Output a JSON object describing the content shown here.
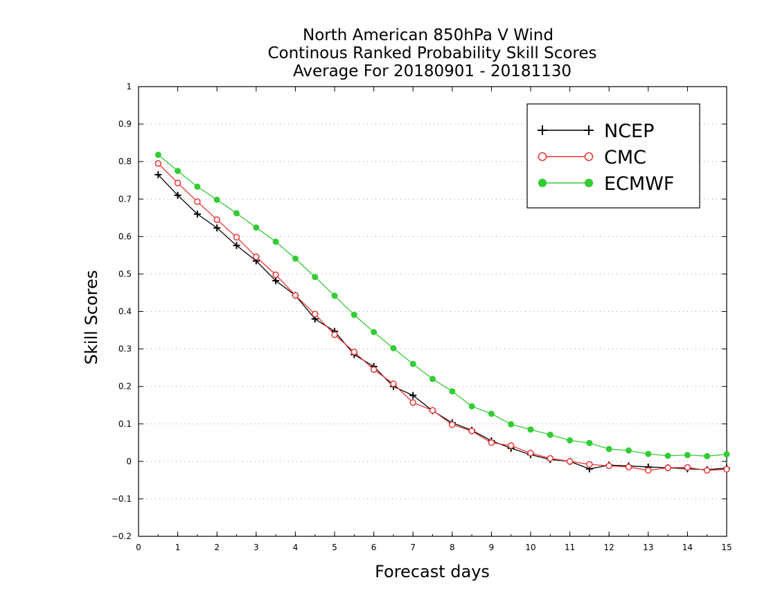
{
  "chart_data": {
    "type": "line",
    "title": [
      "North American 850hPa V Wind",
      "Continous Ranked Probability Skill Scores",
      "Average For 20180901 - 20181130"
    ],
    "xlabel": "Forecast days",
    "ylabel": "Skill Scores",
    "xlim": [
      0,
      15
    ],
    "ylim": [
      -0.2,
      1
    ],
    "xticks": [
      "0",
      "1",
      "2",
      "3",
      "4",
      "5",
      "6",
      "7",
      "8",
      "9",
      "10",
      "11",
      "12",
      "13",
      "14",
      "15"
    ],
    "yticks": [
      "−0.2",
      "−0.1",
      "0",
      "0.1",
      "0.2",
      "0.3",
      "0.4",
      "0.5",
      "0.6",
      "0.7",
      "0.8",
      "0.9",
      "1"
    ],
    "grid": "horizontal-dotted",
    "legend_position": "top-right",
    "x": [
      0.5,
      1,
      1.5,
      2,
      2.5,
      3,
      3.5,
      4,
      4.5,
      5,
      5.5,
      6,
      6.5,
      7,
      7.5,
      8,
      8.5,
      9,
      9.5,
      10,
      10.5,
      11,
      11.5,
      12,
      12.5,
      13,
      13.5,
      14,
      14.5,
      15
    ],
    "series": [
      {
        "name": "NCEP",
        "color": "#000000",
        "marker": "plus",
        "values": [
          0.765,
          0.71,
          0.66,
          0.623,
          0.576,
          0.535,
          0.482,
          0.443,
          0.38,
          0.347,
          0.285,
          0.253,
          0.2,
          0.176,
          0.135,
          0.103,
          0.083,
          0.055,
          0.035,
          0.018,
          0.005,
          0.0,
          -0.02,
          -0.01,
          -0.012,
          -0.015,
          -0.017,
          -0.02,
          -0.022,
          -0.018
        ]
      },
      {
        "name": "CMC",
        "color": "#ee3333",
        "marker": "open-circle",
        "values": [
          0.795,
          0.743,
          0.693,
          0.645,
          0.598,
          0.546,
          0.498,
          0.443,
          0.393,
          0.338,
          0.292,
          0.245,
          0.207,
          0.157,
          0.136,
          0.098,
          0.081,
          0.05,
          0.042,
          0.022,
          0.008,
          0.0,
          -0.008,
          -0.012,
          -0.015,
          -0.024,
          -0.017,
          -0.016,
          -0.024,
          -0.021
        ]
      },
      {
        "name": "ECMWF",
        "color": "#33cc33",
        "marker": "filled-circle",
        "values": [
          0.818,
          0.775,
          0.733,
          0.698,
          0.662,
          0.624,
          0.586,
          0.541,
          0.492,
          0.442,
          0.391,
          0.345,
          0.302,
          0.26,
          0.22,
          0.187,
          0.147,
          0.127,
          0.099,
          0.085,
          0.071,
          0.056,
          0.049,
          0.033,
          0.029,
          0.02,
          0.015,
          0.017,
          0.014,
          0.019
        ]
      }
    ]
  }
}
